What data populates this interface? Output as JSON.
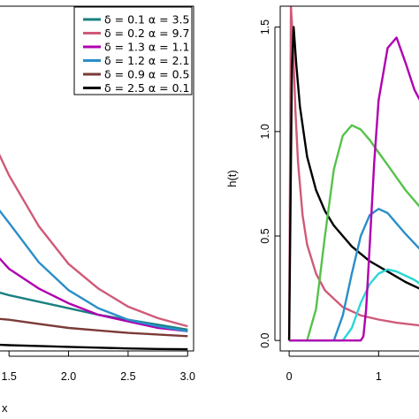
{
  "chart_data": [
    {
      "type": "line",
      "title": "",
      "xlabel": "x",
      "ylabel": "",
      "xlim": [
        1.35,
        3.05
      ],
      "ylim": [
        0,
        2.1
      ],
      "xticks": [
        "1.5",
        "2.0",
        "2.5",
        "3.0"
      ],
      "xtick_values": [
        1.5,
        2.0,
        2.5,
        3.0
      ],
      "legend_position": "top-right",
      "x": [
        1.35,
        1.5,
        1.75,
        2.0,
        2.25,
        2.5,
        2.75,
        3.0
      ],
      "series": [
        {
          "name": "δ = 0.1  α = 3.5",
          "color": "#1a8080",
          "values": [
            0.37,
            0.34,
            0.3,
            0.26,
            0.22,
            0.19,
            0.16,
            0.13
          ]
        },
        {
          "name": "δ = 0.2  α = 9.7",
          "color": "#d05a78",
          "values": [
            1.3,
            1.07,
            0.76,
            0.53,
            0.38,
            0.27,
            0.2,
            0.15
          ]
        },
        {
          "name": "δ = 1.3  α = 1.1",
          "color": "#b000b0",
          "values": [
            0.62,
            0.5,
            0.38,
            0.29,
            0.22,
            0.18,
            0.14,
            0.12
          ]
        },
        {
          "name": "δ = 1.2  α = 2.1",
          "color": "#2a8ec8",
          "values": [
            0.92,
            0.78,
            0.54,
            0.37,
            0.26,
            0.19,
            0.15,
            0.12
          ]
        },
        {
          "name": "δ = 0.9  α = 0.5",
          "color": "#7b3b38",
          "values": [
            0.2,
            0.19,
            0.165,
            0.14,
            0.125,
            0.11,
            0.1,
            0.09
          ]
        },
        {
          "name": "δ = 2.5  α = 0.1",
          "color": "#000000",
          "values": [
            0.04,
            0.035,
            0.03,
            0.025,
            0.02,
            0.015,
            0.012,
            0.01
          ]
        }
      ]
    },
    {
      "type": "line",
      "title": "",
      "xlabel": "",
      "ylabel": "h(t)",
      "xlim": [
        -0.1,
        1.55
      ],
      "ylim": [
        -0.05,
        1.6
      ],
      "xticks": [
        "0",
        "1"
      ],
      "xtick_values": [
        0,
        1
      ],
      "yticks": [
        "0.0",
        "0.5",
        "1.0",
        "1.5"
      ],
      "ytick_values": [
        0,
        0.5,
        1.0,
        1.5
      ],
      "series": [
        {
          "color": "#d05a78",
          "x": [
            0.0,
            0.02,
            0.04,
            0.07,
            0.1,
            0.15,
            0.2,
            0.3,
            0.4,
            0.6,
            0.8,
            1.0,
            1.2,
            1.5
          ],
          "values": [
            0.0,
            1.6,
            1.45,
            1.1,
            0.85,
            0.6,
            0.46,
            0.32,
            0.24,
            0.16,
            0.12,
            0.1,
            0.085,
            0.07
          ]
        },
        {
          "color": "#000000",
          "x": [
            0.0,
            0.03,
            0.05,
            0.08,
            0.12,
            0.2,
            0.3,
            0.4,
            0.5,
            0.7,
            0.9,
            1.1,
            1.3,
            1.5
          ],
          "values": [
            0.0,
            1.3,
            1.5,
            1.32,
            1.12,
            0.88,
            0.72,
            0.62,
            0.55,
            0.45,
            0.38,
            0.33,
            0.28,
            0.24
          ]
        },
        {
          "color": "#55c24a",
          "x": [
            0.0,
            0.2,
            0.3,
            0.4,
            0.5,
            0.6,
            0.7,
            0.8,
            0.9,
            1.0,
            1.1,
            1.2,
            1.3,
            1.5
          ],
          "values": [
            0.0,
            0.0,
            0.15,
            0.5,
            0.82,
            0.98,
            1.03,
            1.01,
            0.96,
            0.9,
            0.84,
            0.78,
            0.72,
            0.62
          ]
        },
        {
          "color": "#2a8ec8",
          "x": [
            0.0,
            0.5,
            0.6,
            0.7,
            0.8,
            0.9,
            1.0,
            1.1,
            1.2,
            1.3,
            1.5
          ],
          "values": [
            0.0,
            0.0,
            0.12,
            0.32,
            0.5,
            0.6,
            0.63,
            0.61,
            0.56,
            0.51,
            0.42
          ]
        },
        {
          "color": "#2ad7d7",
          "x": [
            0.0,
            0.6,
            0.7,
            0.8,
            0.9,
            1.0,
            1.1,
            1.2,
            1.3,
            1.4,
            1.5
          ],
          "values": [
            0.0,
            0.0,
            0.06,
            0.18,
            0.27,
            0.32,
            0.34,
            0.33,
            0.31,
            0.29,
            0.26
          ]
        },
        {
          "color": "#b000b0",
          "x": [
            0.0,
            0.8,
            0.83,
            0.86,
            0.9,
            0.95,
            1.0,
            1.1,
            1.2,
            1.3,
            1.4,
            1.5
          ],
          "values": [
            0.0,
            0.0,
            0.02,
            0.15,
            0.45,
            0.85,
            1.15,
            1.4,
            1.45,
            1.33,
            1.2,
            1.12
          ]
        }
      ]
    }
  ]
}
